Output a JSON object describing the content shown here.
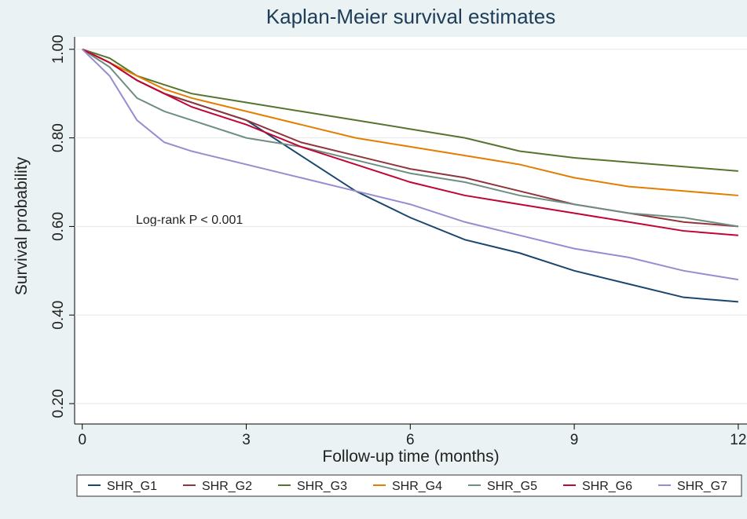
{
  "chart_data": {
    "type": "line",
    "title": "Kaplan-Meier survival estimates",
    "x_label": "Follow-up time (months)",
    "y_label": "Survival probability",
    "annotation": "Log-rank P < 0.001",
    "x": [
      0,
      0.5,
      1,
      1.5,
      2,
      3,
      4,
      5,
      6,
      7,
      8,
      9,
      10,
      11,
      12
    ],
    "series": [
      {
        "name": "SHR_G1",
        "color": "#1a476f",
        "values": [
          1,
          0.97,
          0.93,
          0.9,
          0.88,
          0.84,
          0.76,
          0.68,
          0.62,
          0.57,
          0.54,
          0.5,
          0.47,
          0.44,
          0.43
        ]
      },
      {
        "name": "SHR_G2",
        "color": "#90353b",
        "values": [
          1,
          0.97,
          0.93,
          0.9,
          0.88,
          0.84,
          0.79,
          0.76,
          0.73,
          0.71,
          0.68,
          0.65,
          0.63,
          0.61,
          0.6
        ]
      },
      {
        "name": "SHR_G3",
        "color": "#55752f",
        "values": [
          1,
          0.98,
          0.94,
          0.92,
          0.9,
          0.88,
          0.86,
          0.84,
          0.82,
          0.8,
          0.77,
          0.755,
          0.745,
          0.735,
          0.725
        ]
      },
      {
        "name": "SHR_G4",
        "color": "#e37e00",
        "values": [
          1,
          0.97,
          0.94,
          0.91,
          0.89,
          0.86,
          0.83,
          0.8,
          0.78,
          0.76,
          0.74,
          0.71,
          0.69,
          0.68,
          0.67
        ]
      },
      {
        "name": "SHR_G5",
        "color": "#6e8e84",
        "values": [
          1,
          0.96,
          0.89,
          0.86,
          0.84,
          0.8,
          0.78,
          0.75,
          0.72,
          0.7,
          0.67,
          0.65,
          0.63,
          0.62,
          0.6
        ]
      },
      {
        "name": "SHR_G6",
        "color": "#c10534",
        "values": [
          1,
          0.97,
          0.93,
          0.9,
          0.87,
          0.83,
          0.78,
          0.74,
          0.7,
          0.67,
          0.65,
          0.63,
          0.61,
          0.59,
          0.58
        ]
      },
      {
        "name": "SHR_G7",
        "color": "#938dd2",
        "values": [
          1,
          0.94,
          0.84,
          0.79,
          0.77,
          0.74,
          0.71,
          0.68,
          0.65,
          0.61,
          0.58,
          0.55,
          0.53,
          0.5,
          0.48
        ]
      }
    ],
    "xlim": [
      -0.14,
      12.16
    ],
    "ylim": [
      0.154,
      1.028
    ],
    "xticks": [
      0,
      3,
      6,
      9,
      12
    ],
    "yticks": [
      {
        "value": 0.2,
        "label": "0.20"
      },
      {
        "value": 0.4,
        "label": "0.40"
      },
      {
        "value": 0.6,
        "label": "0.60"
      },
      {
        "value": 0.8,
        "label": "0.80"
      },
      {
        "value": 1,
        "label": "1.00"
      }
    ],
    "grid": true
  }
}
